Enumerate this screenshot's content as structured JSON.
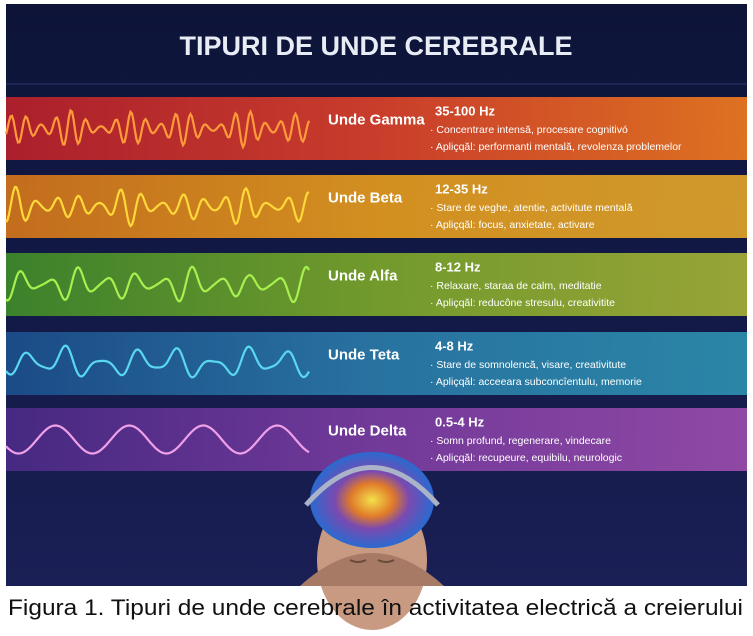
{
  "title": "TIPURI DE UNDE CEREBRALE",
  "bands": [
    {
      "name": "Unde Gamma",
      "frequency": "35-100 Hz",
      "line1": "· Concentrare intensă, procesare cognitivó",
      "line2": "· Apliçqăl: performanti mentală, revolenza problemelor"
    },
    {
      "name": "Unde Beta",
      "frequency": "12-35 Hz",
      "line1": "· Stare de veghe, atentie, activitute mentală",
      "line2": "· Apliçqăl: focus, anxietate, activare"
    },
    {
      "name": "Unde Alfa",
      "frequency": "8-12 Hz",
      "line1": "· Relaxare, staraa de calm, meditatie",
      "line2": "· Apliçqăl: reducône stresulu, creativitite"
    },
    {
      "name": "Unde Teta",
      "frequency": "4-8 Hz",
      "line1": "· Stare de somnolencă, visare, creativitute",
      "line2": "· Apliçqăl: acceeara subconcîentulu, memorie"
    },
    {
      "name": "Unde Delta",
      "frequency": "0.5-4 Hz",
      "line1": "· Somn profund, regenerare, vindecare",
      "line2": "· Apliçqăl: recupeure, equibilu, neurologic"
    }
  ],
  "caption": "Figura 1. Tipuri de unde cerebrale în activitatea electrică a creierului"
}
